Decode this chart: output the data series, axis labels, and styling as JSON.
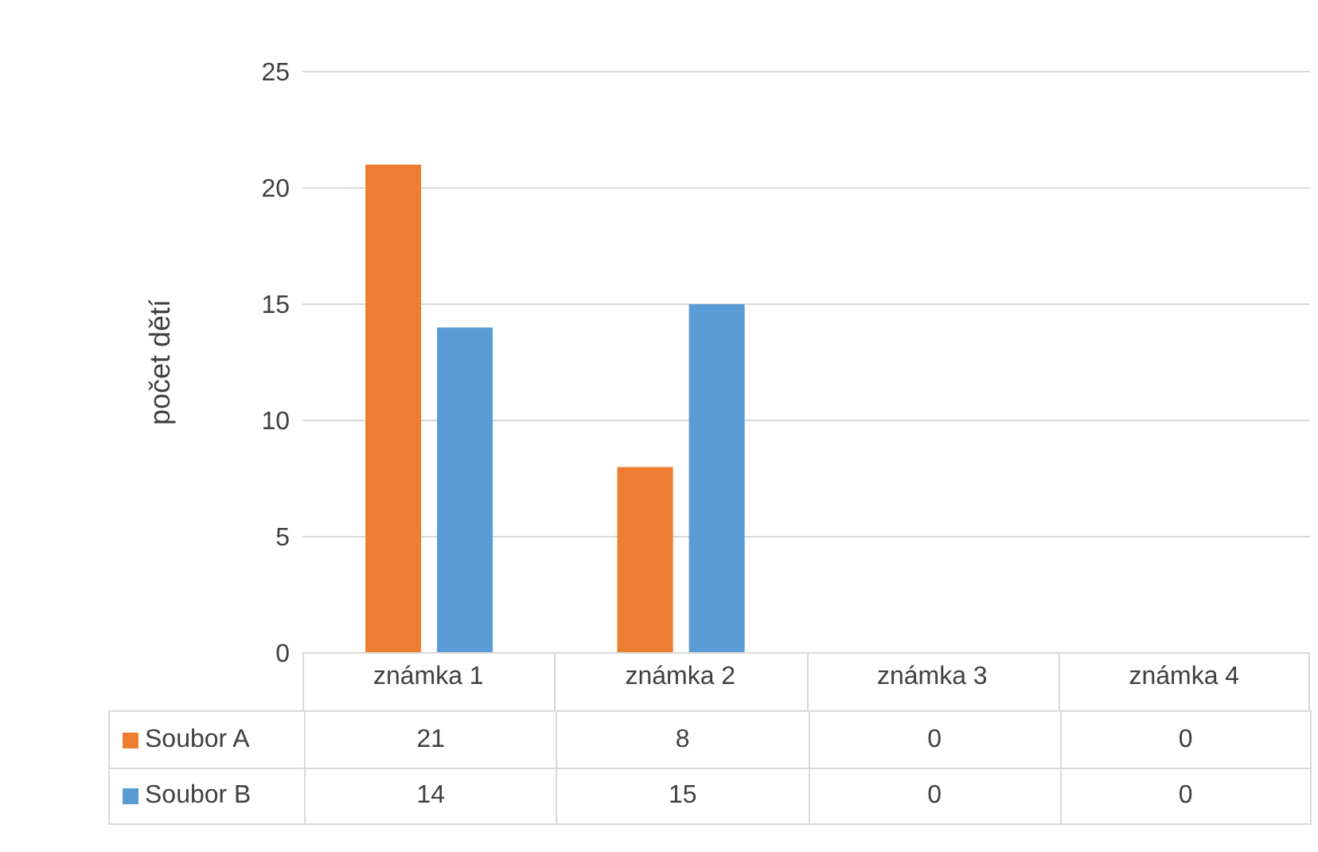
{
  "chart_data": {
    "type": "bar",
    "ylabel": "počet dětí",
    "categories": [
      "známka 1",
      "známka 2",
      "známka 3",
      "známka 4"
    ],
    "series": [
      {
        "name": "Soubor A",
        "color": "#ed7d31",
        "values": [
          21,
          8,
          0,
          0
        ]
      },
      {
        "name": "Soubor B",
        "color": "#5b9bd5",
        "values": [
          14,
          15,
          0,
          0
        ]
      }
    ],
    "ylim": [
      0,
      25
    ],
    "yticks": [
      0,
      5,
      10,
      15,
      20,
      25
    ],
    "grid": "y",
    "legend": "bottom",
    "data_labels": true
  }
}
